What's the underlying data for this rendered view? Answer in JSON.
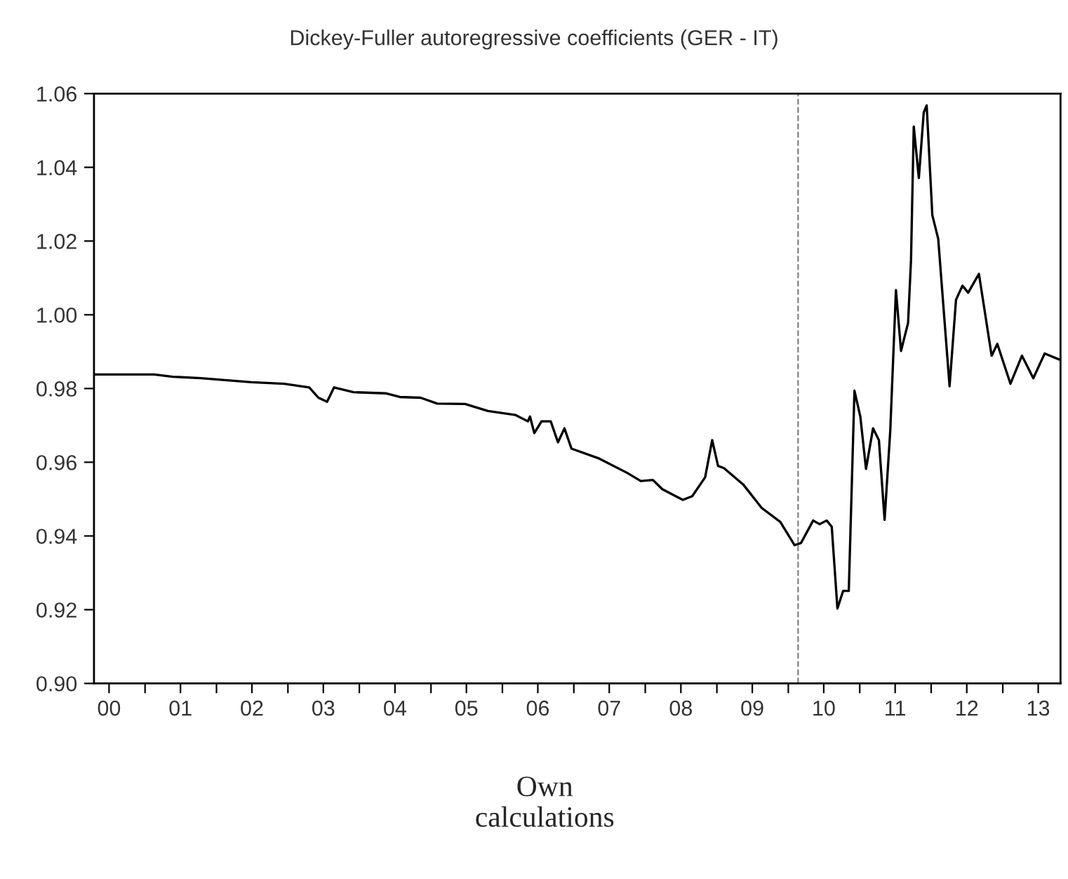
{
  "chart_data": {
    "type": "line",
    "title": "Dickey-Fuller autoregressive coefficients (GER - IT)",
    "x": [
      "2000-04-15",
      "2001-02-16",
      "2001-05-22",
      "2001-10-12",
      "2002-06-28",
      "2002-12-13",
      "2003-04-20",
      "2003-06-06",
      "2003-07-20",
      "2003-08-25",
      "2003-12-02",
      "2004-05-14",
      "2004-07-26",
      "2004-11-09",
      "2005-02-02",
      "2005-06-24",
      "2005-10-19",
      "2006-03-10",
      "2006-05-11",
      "2006-05-22",
      "2006-06-13",
      "2006-07-20",
      "2006-09-05",
      "2006-10-12",
      "2006-11-14",
      "2006-12-20",
      "2007-05-11",
      "2007-10-01",
      "2007-12-09",
      "2008-02-09",
      "2008-03-28",
      "2008-07-11",
      "2008-08-28",
      "2008-11-02",
      "2008-12-08",
      "2009-01-07",
      "2009-02-06",
      "2009-05-15",
      "2009-08-18",
      "2009-11-21",
      "2010-02-02",
      "2010-03-07",
      "2010-05-08",
      "2010-06-10",
      "2010-07-16",
      "2010-08-11",
      "2010-09-09",
      "2010-10-08",
      "2010-11-06",
      "2010-12-05",
      "2011-01-04",
      "2011-02-02",
      "2011-03-10",
      "2011-04-09",
      "2011-05-08",
      "2011-06-06",
      "2011-07-05",
      "2011-07-31",
      "2011-09-05",
      "2011-09-20",
      "2011-10-04",
      "2011-10-30",
      "2011-11-24",
      "2011-12-09",
      "2012-01-07",
      "2012-02-06",
      "2012-04-04",
      "2012-05-07",
      "2012-06-09",
      "2012-07-08",
      "2012-09-01",
      "2012-11-05",
      "2012-12-04",
      "2013-02-09",
      "2013-04-09",
      "2013-06-06",
      "2013-08-03",
      "2013-10-15"
    ],
    "series": [
      {
        "color": "#000000",
        "values": [
          0.9838,
          0.9838,
          0.9832,
          0.9828,
          0.9817,
          0.9813,
          0.9803,
          0.9775,
          0.9764,
          0.9803,
          0.979,
          0.9787,
          0.9777,
          0.9775,
          0.9759,
          0.9758,
          0.9739,
          0.9728,
          0.9711,
          0.9724,
          0.9679,
          0.9711,
          0.9711,
          0.9654,
          0.9692,
          0.9637,
          0.961,
          0.9571,
          0.9549,
          0.9552,
          0.9527,
          0.9498,
          0.9508,
          0.9559,
          0.966,
          0.959,
          0.9584,
          0.954,
          0.9476,
          0.9438,
          0.9375,
          0.9381,
          0.9442,
          0.9432,
          0.9442,
          0.9425,
          0.9203,
          0.9251,
          0.9251,
          0.9794,
          0.9724,
          0.9582,
          0.9692,
          0.966,
          0.9444,
          0.9686,
          1.0067,
          0.9902,
          0.9978,
          1.0149,
          1.0511,
          1.0371,
          1.0549,
          1.0568,
          1.027,
          1.0206,
          0.9806,
          1.0041,
          1.0079,
          1.006,
          1.0111,
          0.9889,
          0.9921,
          0.9813,
          0.9889,
          0.9828,
          0.9895,
          0.9879
        ]
      }
    ],
    "xlim": [
      "2000-04-15",
      "2013-10-23"
    ],
    "xticks": [
      {
        "value": "2000-07-01",
        "label": "00"
      },
      {
        "value": "2001-01-01",
        "label": null
      },
      {
        "value": "2001-07-01",
        "label": "01"
      },
      {
        "value": "2002-01-01",
        "label": null
      },
      {
        "value": "2002-07-01",
        "label": "02"
      },
      {
        "value": "2003-01-01",
        "label": null
      },
      {
        "value": "2003-07-01",
        "label": "03"
      },
      {
        "value": "2004-01-01",
        "label": null
      },
      {
        "value": "2004-07-01",
        "label": "04"
      },
      {
        "value": "2005-01-01",
        "label": null
      },
      {
        "value": "2005-07-01",
        "label": "05"
      },
      {
        "value": "2006-01-01",
        "label": null
      },
      {
        "value": "2006-07-01",
        "label": "06"
      },
      {
        "value": "2007-01-01",
        "label": null
      },
      {
        "value": "2007-07-01",
        "label": "07"
      },
      {
        "value": "2008-01-01",
        "label": null
      },
      {
        "value": "2008-07-01",
        "label": "08"
      },
      {
        "value": "2009-01-01",
        "label": null
      },
      {
        "value": "2009-07-01",
        "label": "09"
      },
      {
        "value": "2010-01-01",
        "label": null
      },
      {
        "value": "2010-07-01",
        "label": "10"
      },
      {
        "value": "2011-01-01",
        "label": null
      },
      {
        "value": "2011-07-01",
        "label": "11"
      },
      {
        "value": "2012-01-01",
        "label": null
      },
      {
        "value": "2012-07-01",
        "label": "12"
      },
      {
        "value": "2013-01-01",
        "label": null
      },
      {
        "value": "2013-07-01",
        "label": "13"
      }
    ],
    "ylim": [
      0.9,
      1.06
    ],
    "yticks": [
      {
        "value": 0.9,
        "label": "0.90"
      },
      {
        "value": 0.92,
        "label": "0.92"
      },
      {
        "value": 0.94,
        "label": "0.94"
      },
      {
        "value": 0.96,
        "label": "0.96"
      },
      {
        "value": 0.98,
        "label": "0.98"
      },
      {
        "value": 1.0,
        "label": "1.00"
      },
      {
        "value": 1.02,
        "label": "1.02"
      },
      {
        "value": 1.04,
        "label": "1.04"
      },
      {
        "value": 1.06,
        "label": "1.06"
      }
    ],
    "ref_lines": [
      {
        "axis": "x",
        "value": "2010-02-20",
        "color": "#808080",
        "line_style": "dashed"
      }
    ],
    "grid": false,
    "legend": false,
    "annotations": [
      "Own\ncalculations"
    ]
  }
}
